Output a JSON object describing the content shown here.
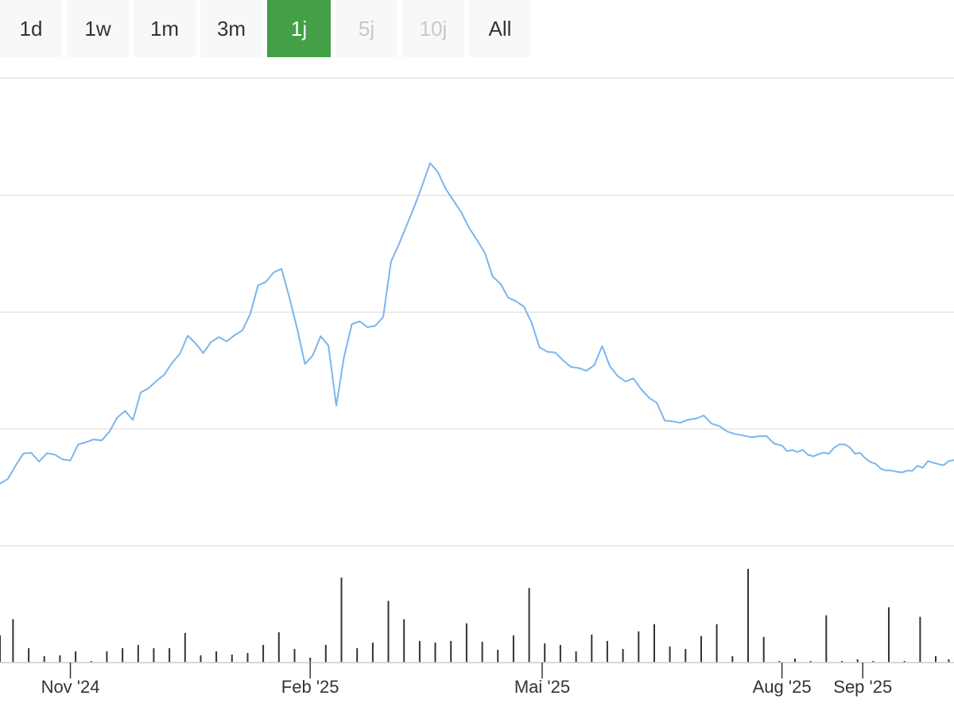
{
  "range_selector": {
    "tabs": [
      {
        "label": "1d",
        "state": "normal"
      },
      {
        "label": "1w",
        "state": "normal"
      },
      {
        "label": "1m",
        "state": "normal"
      },
      {
        "label": "3m",
        "state": "normal"
      },
      {
        "label": "1j",
        "state": "active"
      },
      {
        "label": "5j",
        "state": "disabled"
      },
      {
        "label": "10j",
        "state": "disabled"
      },
      {
        "label": "All",
        "state": "normal"
      }
    ]
  },
  "colors": {
    "active_tab": "#43a047",
    "line": "#7cb5ec",
    "volume": "#333333",
    "grid": "#e6e6e6"
  },
  "chart_data": {
    "type": "line",
    "title": "",
    "xlabel": "",
    "ylabel": "",
    "grid": true,
    "x_ticks": [
      {
        "label": "Nov '24",
        "x": "2024-11-01"
      },
      {
        "label": "Feb '25",
        "x": "2025-02-01"
      },
      {
        "label": "Mai '25",
        "x": "2025-05-01"
      },
      {
        "label": "Aug '25",
        "x": "2025-08-01"
      },
      {
        "label": "Sep '25",
        "x": "2025-09-01"
      }
    ],
    "price_series": {
      "x": [
        "2024-10-05",
        "2024-10-08",
        "2024-10-11",
        "2024-10-14",
        "2024-10-17",
        "2024-10-20",
        "2024-10-23",
        "2024-10-26",
        "2024-10-29",
        "2024-11-01",
        "2024-11-04",
        "2024-11-07",
        "2024-11-10",
        "2024-11-13",
        "2024-11-16",
        "2024-11-19",
        "2024-11-22",
        "2024-11-25",
        "2024-11-28",
        "2024-12-01",
        "2024-12-04",
        "2024-12-07",
        "2024-12-10",
        "2024-12-13",
        "2024-12-16",
        "2024-12-19",
        "2024-12-22",
        "2024-12-25",
        "2024-12-28",
        "2024-12-31",
        "2025-01-03",
        "2025-01-06",
        "2025-01-09",
        "2025-01-12",
        "2025-01-15",
        "2025-01-18",
        "2025-01-21",
        "2025-01-24",
        "2025-01-27",
        "2025-01-30",
        "2025-02-02",
        "2025-02-05",
        "2025-02-08",
        "2025-02-11",
        "2025-02-14",
        "2025-02-17",
        "2025-02-20",
        "2025-02-23",
        "2025-02-26",
        "2025-03-01",
        "2025-03-04",
        "2025-03-07",
        "2025-03-10",
        "2025-03-13",
        "2025-03-16",
        "2025-03-19",
        "2025-03-22",
        "2025-03-25",
        "2025-03-28",
        "2025-03-31",
        "2025-04-03",
        "2025-04-06",
        "2025-04-09",
        "2025-04-12",
        "2025-04-15",
        "2025-04-18",
        "2025-04-21",
        "2025-04-24",
        "2025-04-27",
        "2025-04-30",
        "2025-05-03",
        "2025-05-06",
        "2025-05-09",
        "2025-05-12",
        "2025-05-15",
        "2025-05-18",
        "2025-05-21",
        "2025-05-24",
        "2025-05-27",
        "2025-05-30",
        "2025-06-02",
        "2025-06-05",
        "2025-06-08",
        "2025-06-11",
        "2025-06-14",
        "2025-06-17",
        "2025-06-20",
        "2025-06-23",
        "2025-06-26",
        "2025-06-29",
        "2025-07-02",
        "2025-07-05",
        "2025-07-08",
        "2025-07-11",
        "2025-07-14",
        "2025-07-17",
        "2025-07-20",
        "2025-07-23",
        "2025-07-26",
        "2025-07-29",
        "2025-08-01",
        "2025-08-03",
        "2025-08-05",
        "2025-08-07",
        "2025-08-09",
        "2025-08-11",
        "2025-08-13",
        "2025-08-15",
        "2025-08-17",
        "2025-08-19",
        "2025-08-21",
        "2025-08-23",
        "2025-08-25",
        "2025-08-27",
        "2025-08-29",
        "2025-08-31",
        "2025-09-02",
        "2025-09-04",
        "2025-09-06",
        "2025-09-08",
        "2025-09-10",
        "2025-09-12",
        "2025-09-14",
        "2025-09-16",
        "2025-09-18",
        "2025-09-20",
        "2025-09-22",
        "2025-09-24",
        "2025-09-26",
        "2025-09-28",
        "2025-09-30",
        "2025-10-02",
        "2025-10-04",
        "2025-10-06"
      ],
      "values": [
        10,
        11.6,
        16.4,
        20.7,
        20.9,
        17.8,
        20.8,
        20.3,
        18.6,
        18.2,
        23.9,
        24.7,
        25.7,
        25.3,
        28.5,
        33.5,
        35.8,
        32.6,
        42.4,
        43.9,
        46.5,
        48.7,
        52.9,
        56.1,
        62.6,
        59.9,
        56.4,
        60.4,
        62.1,
        60.5,
        62.8,
        64.5,
        70.3,
        80.5,
        81.7,
        85.1,
        86.4,
        76.3,
        65.1,
        52.5,
        55.6,
        62.4,
        59.1,
        37.7,
        55.1,
        66.7,
        67.7,
        65.6,
        66.1,
        69.2,
        88.9,
        95,
        101.8,
        108.6,
        116,
        124,
        120.8,
        114.8,
        110.6,
        106.4,
        100.9,
        96.6,
        92.1,
        83.6,
        81.1,
        76.1,
        74.8,
        72.9,
        67.1,
        58.4,
        56.9,
        56.6,
        53.8,
        51.5,
        51.1,
        50.1,
        52.1,
        58.9,
        51.7,
        48.2,
        46.3,
        47.4,
        43.5,
        40.5,
        38.7,
        32.4,
        32.1,
        31.6,
        32.7,
        33.1,
        34.2,
        31.3,
        30.4,
        28.5,
        27.6,
        27.1,
        26.5,
        26.8,
        26.9,
        24.2,
        23.5,
        21.5,
        21.9,
        21.2,
        22,
        20.2,
        19.7,
        20.4,
        21,
        20.6,
        22.7,
        23.9,
        23.9,
        22.9,
        20.6,
        20.9,
        18.9,
        17.6,
        17,
        15.2,
        14.6,
        14.6,
        14.2,
        13.9,
        14.6,
        14.5,
        16.3,
        15.6,
        18,
        17.4,
        16.9,
        16.5,
        18,
        18.3
      ]
    },
    "volume_series": {
      "x": [
        "2024-10-05",
        "2024-10-10",
        "2024-10-16",
        "2024-10-22",
        "2024-10-28",
        "2024-11-03",
        "2024-11-09",
        "2024-11-15",
        "2024-11-21",
        "2024-11-27",
        "2024-12-03",
        "2024-12-09",
        "2024-12-15",
        "2024-12-21",
        "2024-12-27",
        "2025-01-02",
        "2025-01-08",
        "2025-01-14",
        "2025-01-20",
        "2025-01-26",
        "2025-02-01",
        "2025-02-07",
        "2025-02-13",
        "2025-02-19",
        "2025-02-25",
        "2025-03-03",
        "2025-03-09",
        "2025-03-15",
        "2025-03-21",
        "2025-03-27",
        "2025-04-02",
        "2025-04-08",
        "2025-04-14",
        "2025-04-20",
        "2025-04-26",
        "2025-05-02",
        "2025-05-08",
        "2025-05-14",
        "2025-05-20",
        "2025-05-26",
        "2025-06-01",
        "2025-06-07",
        "2025-06-13",
        "2025-06-19",
        "2025-06-25",
        "2025-07-01",
        "2025-07-07",
        "2025-07-13",
        "2025-07-19",
        "2025-07-25",
        "2025-07-31",
        "2025-08-06",
        "2025-08-12",
        "2025-08-18",
        "2025-08-24",
        "2025-08-30",
        "2025-09-05",
        "2025-09-11",
        "2025-09-17",
        "2025-09-23",
        "2025-09-29",
        "2025-10-04"
      ],
      "values": [
        34,
        54,
        18,
        8,
        9,
        14,
        2,
        14,
        18,
        22,
        18,
        18,
        37,
        9,
        14,
        10,
        12,
        22,
        38,
        17,
        6,
        22,
        106,
        18,
        25,
        77,
        54,
        27,
        25,
        27,
        49,
        26,
        16,
        34,
        93,
        24,
        22,
        14,
        35,
        27,
        17,
        39,
        48,
        20,
        17,
        33,
        48,
        8,
        117,
        32,
        2,
        5,
        2,
        59,
        2,
        4,
        2,
        69,
        2,
        57,
        8,
        4
      ]
    }
  }
}
